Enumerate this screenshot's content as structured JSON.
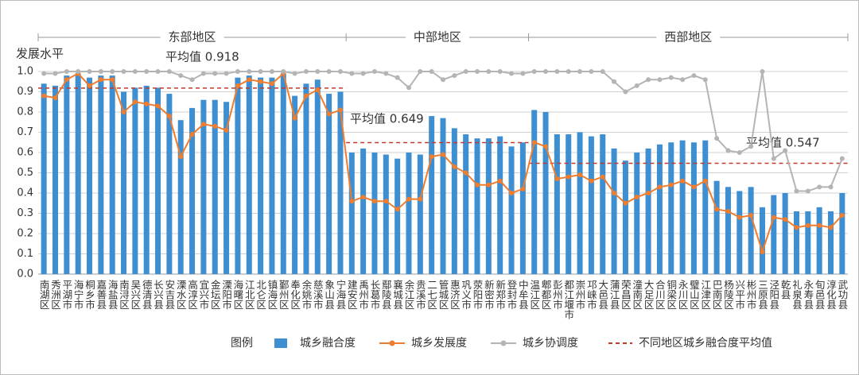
{
  "chart_data": {
    "type": "bar-line",
    "y_label": "发展水平",
    "legend_title": "图例",
    "average_legend": "不同地区城乡融合度平均值",
    "average_color": "#c0392b",
    "ylim": [
      0,
      1.0
    ],
    "yticks": [
      {
        "value": 0,
        "label": "0.0"
      },
      0.1,
      0.2,
      0.3,
      0.4,
      0.5,
      0.6,
      0.7,
      0.8,
      0.9,
      {
        "value": 1.0,
        "label": "1.0"
      }
    ],
    "grid": true,
    "regions": [
      {
        "name": "东部地区",
        "average": 0.918,
        "average_label": "平均值 0.918",
        "categories": [
          "南湖区",
          "秀洲区",
          "平湖市",
          "海宁市",
          "桐乡市",
          "嘉善县",
          "海盐县",
          "南浔区",
          "吴兴区",
          "德清县",
          "长兴县",
          "安吉县",
          "溧水区",
          "高淳区",
          "宜兴市",
          "金坛区",
          "溧阳市",
          "海曙区",
          "江北区",
          "北仑区",
          "镇海区",
          "鄞州区",
          "奉化区",
          "余姚市",
          "慈溪市",
          "象山县",
          "宁海县"
        ]
      },
      {
        "name": "中部地区",
        "average": 0.649,
        "average_label": "平均值 0.649",
        "categories": [
          "建安区",
          "禹州市",
          "长葛市",
          "鄢陵县",
          "襄城县",
          "余江区",
          "贵溪市",
          "二七区",
          "管城区",
          "惠济区",
          "巩义市",
          "荥阳市",
          "新密市",
          "新郑市",
          "登封市",
          "中牟县"
        ]
      },
      {
        "name": "西部地区",
        "average": 0.547,
        "average_label": "平均值 0.547",
        "categories": [
          "温江区",
          "郫都区",
          "彭州市",
          "都江堰市",
          "崇州市",
          "邛崃市",
          "大邑县",
          "蒲江县",
          "荣昌区",
          "潼南区",
          "大足区",
          "合川区",
          "铜梁区",
          "永川区",
          "璧山区",
          "江津区",
          "巴南区",
          "杨陵区",
          "兴平市",
          "彬州市",
          "三原县",
          "泾阳县",
          "乾县",
          "礼泉县",
          "永寿县",
          "旬邑县",
          "淳化县",
          "武功县"
        ]
      }
    ],
    "series": [
      {
        "name": "城乡融合度",
        "kind": "bar",
        "color": "#3d8fd1",
        "values": [
          0.94,
          0.93,
          0.98,
          0.99,
          0.97,
          0.98,
          0.98,
          0.9,
          0.92,
          0.93,
          0.92,
          0.89,
          0.76,
          0.82,
          0.86,
          0.86,
          0.85,
          0.97,
          0.98,
          0.97,
          0.97,
          0.99,
          0.88,
          0.94,
          0.96,
          0.89,
          0.9,
          0.6,
          0.62,
          0.6,
          0.59,
          0.57,
          0.6,
          0.59,
          0.78,
          0.77,
          0.72,
          0.69,
          0.67,
          0.67,
          0.68,
          0.63,
          0.65,
          0.81,
          0.8,
          0.69,
          0.69,
          0.7,
          0.68,
          0.69,
          0.62,
          0.56,
          0.6,
          0.62,
          0.64,
          0.65,
          0.66,
          0.65,
          0.66,
          0.46,
          0.43,
          0.41,
          0.43,
          0.33,
          0.39,
          0.4,
          0.31,
          0.31,
          0.33,
          0.31,
          0.4
        ]
      },
      {
        "name": "城乡发展度",
        "kind": "line",
        "color": "#ef7d2d",
        "values": [
          0.88,
          0.87,
          0.96,
          0.99,
          0.93,
          0.96,
          0.96,
          0.8,
          0.85,
          0.84,
          0.83,
          0.78,
          0.58,
          0.69,
          0.74,
          0.73,
          0.71,
          0.93,
          0.96,
          0.95,
          0.94,
          0.99,
          0.77,
          0.88,
          0.91,
          0.79,
          0.81,
          0.36,
          0.38,
          0.36,
          0.36,
          0.32,
          0.37,
          0.37,
          0.58,
          0.59,
          0.53,
          0.5,
          0.44,
          0.44,
          0.46,
          0.4,
          0.42,
          0.65,
          0.63,
          0.47,
          0.48,
          0.49,
          0.46,
          0.48,
          0.4,
          0.35,
          0.38,
          0.4,
          0.43,
          0.44,
          0.46,
          0.43,
          0.46,
          0.32,
          0.31,
          0.28,
          0.29,
          0.11,
          0.28,
          0.27,
          0.23,
          0.24,
          0.24,
          0.23,
          0.29
        ]
      },
      {
        "name": "城乡协调度",
        "kind": "line",
        "color": "#b4b4b4",
        "values": [
          0.99,
          0.99,
          1.0,
          1.0,
          1.0,
          1.0,
          1.0,
          1.0,
          1.0,
          1.0,
          1.0,
          1.0,
          0.98,
          0.96,
          0.99,
          0.99,
          0.99,
          1.0,
          1.0,
          1.0,
          1.0,
          1.0,
          0.99,
          1.0,
          1.0,
          1.0,
          1.0,
          0.99,
          0.99,
          1.0,
          0.99,
          0.97,
          0.92,
          1.0,
          1.0,
          0.96,
          0.98,
          1.0,
          1.0,
          1.0,
          1.0,
          0.99,
          0.99,
          1.0,
          1.0,
          1.0,
          1.0,
          1.0,
          1.0,
          1.0,
          0.95,
          0.9,
          0.93,
          0.96,
          0.96,
          0.97,
          0.96,
          0.98,
          0.96,
          0.67,
          0.61,
          0.6,
          0.63,
          1.0,
          0.57,
          0.61,
          0.41,
          0.41,
          0.43,
          0.43,
          0.57
        ]
      }
    ]
  }
}
